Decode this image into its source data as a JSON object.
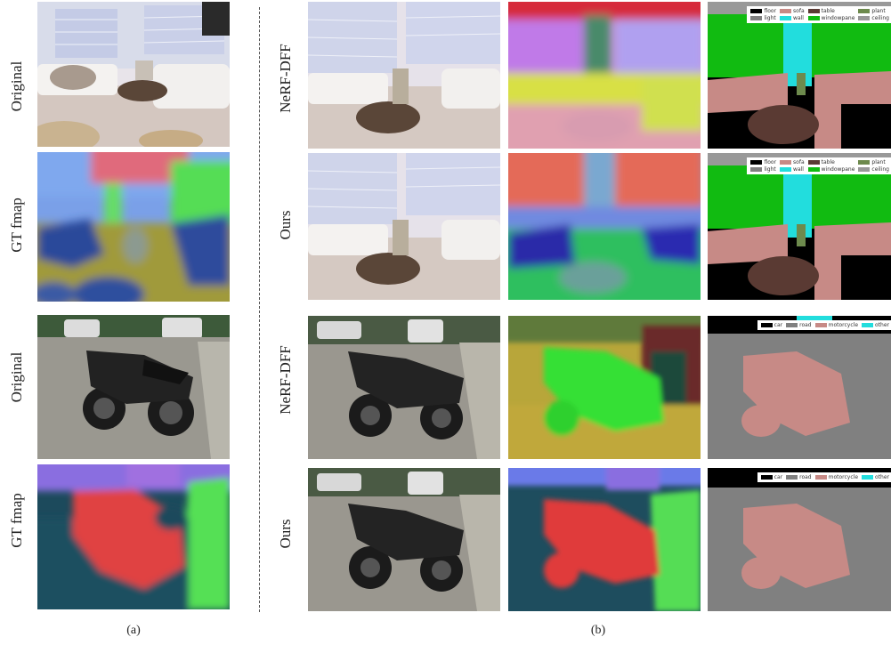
{
  "labels": {
    "original": "Original",
    "gt_fmap": "GT fmap",
    "nerf_dff": "NeRF-DFF",
    "ours": "Ours"
  },
  "captions": {
    "a": "(a)",
    "b": "(b)"
  },
  "legend_room": [
    {
      "label": "floor",
      "color": "#000000"
    },
    {
      "label": "sofa",
      "color": "#c78a86"
    },
    {
      "label": "table",
      "color": "#5a3a33"
    },
    {
      "label": "plant",
      "color": "#6d8a4d"
    },
    {
      "label": "light",
      "color": "#808080"
    },
    {
      "label": "wall",
      "color": "#22dddd"
    },
    {
      "label": "windowpane",
      "color": "#11bb11"
    },
    {
      "label": "ceiling",
      "color": "#999999"
    }
  ],
  "legend_moto": [
    {
      "label": "car",
      "color": "#000000"
    },
    {
      "label": "road",
      "color": "#808080"
    },
    {
      "label": "motorcycle",
      "color": "#c78a86"
    },
    {
      "label": "other",
      "color": "#22dddd"
    }
  ]
}
